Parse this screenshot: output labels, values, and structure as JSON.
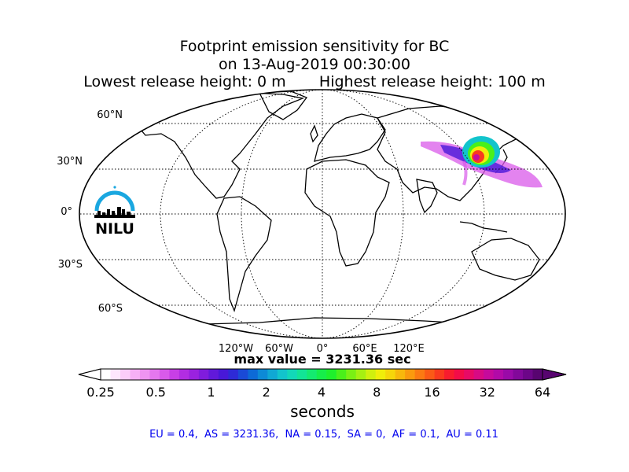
{
  "title": {
    "line1": "Footprint emission sensitivity for BC",
    "line2": "on 13-Aug-2019 00:30:00",
    "line3": "Lowest release height: 0 m       Highest release height: 100 m"
  },
  "map": {
    "lat_labels": [
      "60°N",
      "30°N",
      "0°",
      "30°S",
      "60°S"
    ],
    "lon_labels": [
      "120°W",
      "60°W",
      "0°",
      "60°E",
      "120°E"
    ],
    "logo_text": "NILU",
    "colors": {
      "logo_arc": "#1aa7e0",
      "land_outline": "#000000",
      "grid": "#000000"
    }
  },
  "max_value": "max value = 3231.36 sec",
  "colorbar": {
    "ticks": [
      "0.25",
      "0.5",
      "1",
      "2",
      "4",
      "8",
      "16",
      "32",
      "64"
    ],
    "label": "seconds",
    "colors": [
      "#ffffff",
      "#fde6fc",
      "#fbcdf9",
      "#f6b0f5",
      "#ef94f1",
      "#e577ee",
      "#d95aea",
      "#c83fe6",
      "#b22de2",
      "#9a22df",
      "#801cdc",
      "#6119da",
      "#4818d8",
      "#2e2ad6",
      "#1a4ad6",
      "#0d6ad6",
      "#0d8ad6",
      "#10a8d4",
      "#12c4cc",
      "#12d8b8",
      "#12e496",
      "#14ea70",
      "#16ee4a",
      "#1ef02c",
      "#4af01a",
      "#7af014",
      "#a6f012",
      "#d0f00e",
      "#f0ee0a",
      "#f6d60a",
      "#f8b80c",
      "#fa9a0e",
      "#fb7a12",
      "#fb5a16",
      "#fa3a1e",
      "#f81c2e",
      "#f30c48",
      "#e80a66",
      "#d80a84",
      "#c60a9c",
      "#b20aa8",
      "#9a0aa8",
      "#82089a",
      "#6c0688",
      "#580470"
    ]
  },
  "footer": "EU = 0.4,  AS = 3231.36,  NA = 0.15,  SA = 0,  AF = 0.1,  AU = 0.11"
}
